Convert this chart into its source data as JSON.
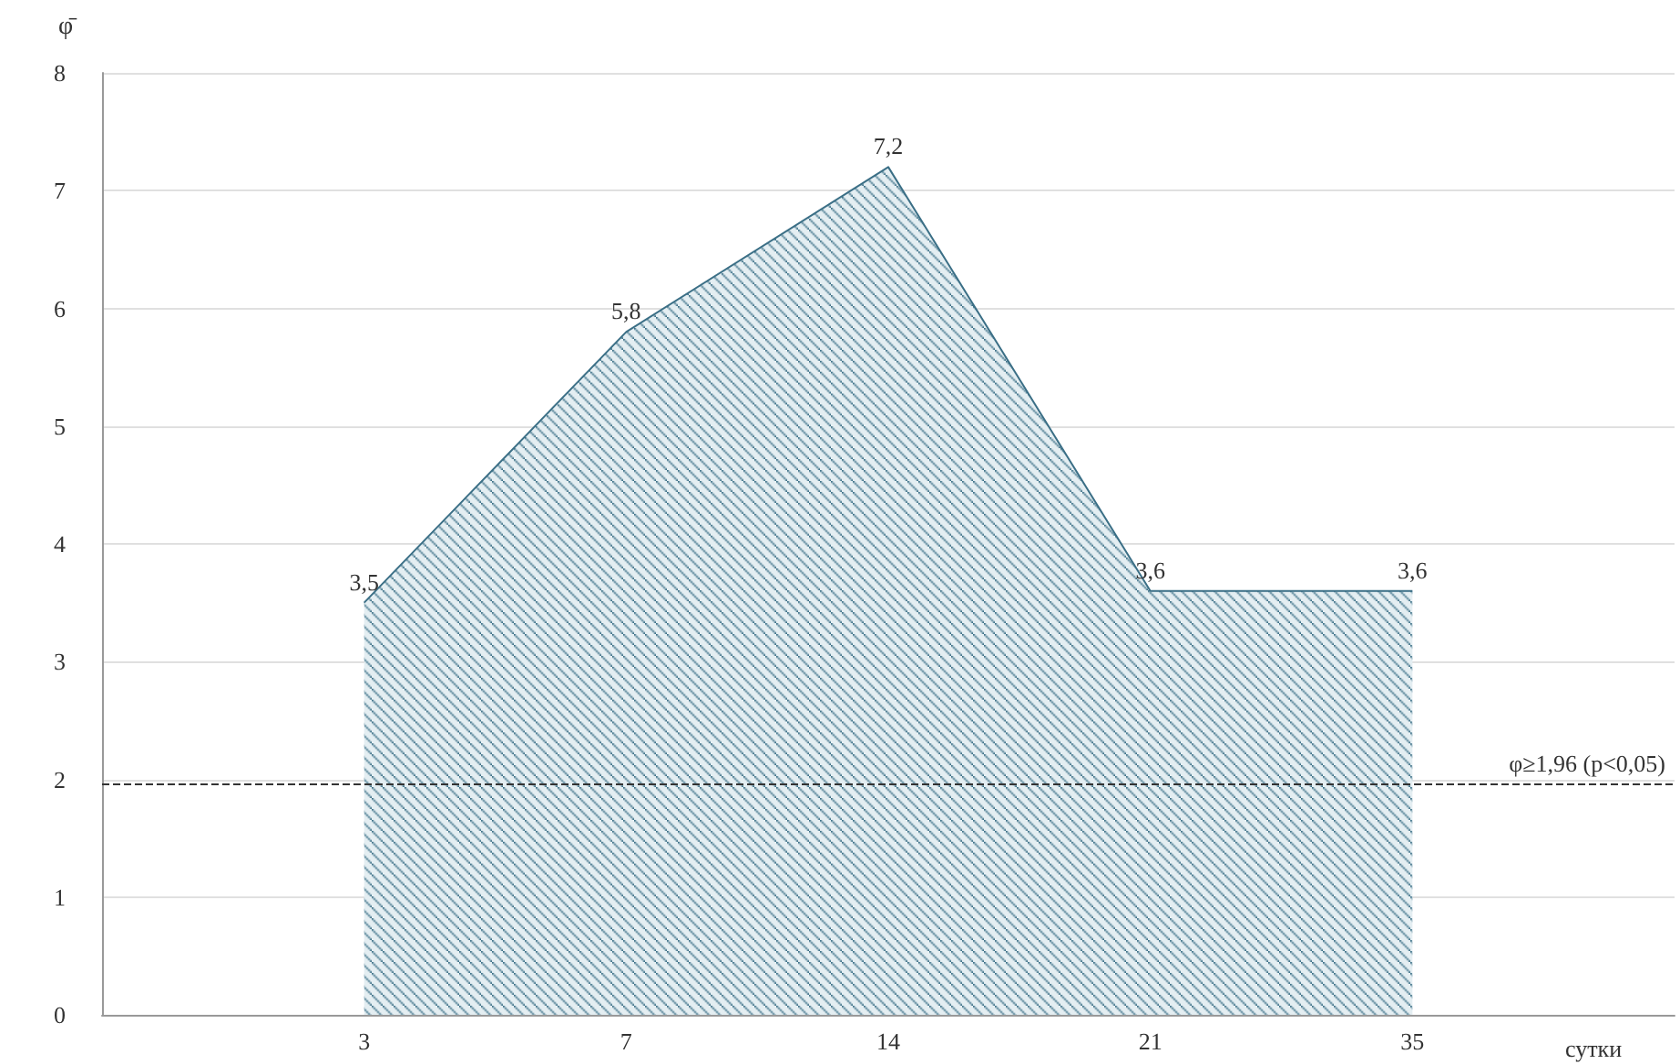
{
  "chart_data": {
    "type": "area",
    "xlabel": "сутки",
    "ylabel": "φ̄",
    "categories": [
      null,
      "3",
      "7",
      "14",
      "21",
      "35",
      null
    ],
    "series": [
      {
        "color": "#3b6f86",
        "values": [
          null,
          3.5,
          5.8,
          7.2,
          3.6,
          3.6,
          null
        ],
        "value_labels": [
          null,
          "3,5",
          "5,8",
          "7,2",
          "3,6",
          "3,6",
          null
        ]
      }
    ],
    "ylim": [
      0,
      8
    ],
    "yticks": [
      0,
      1,
      2,
      3,
      4,
      5,
      6,
      7,
      8
    ],
    "grid": "y",
    "ref_lines": [
      {
        "axis": "y",
        "value": 1.96,
        "label": "φ≥1,96 (p<0,05)",
        "line_style": "dashed",
        "color": "#333333"
      }
    ]
  }
}
